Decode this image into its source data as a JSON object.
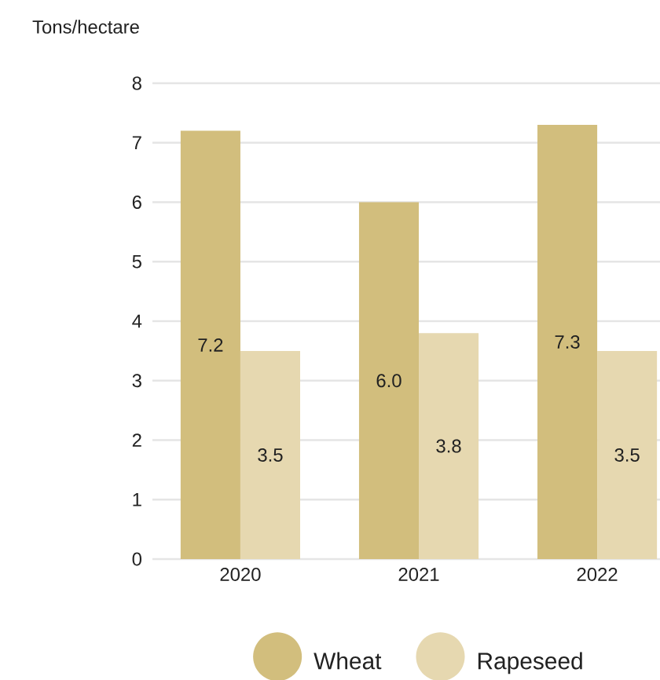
{
  "chart_data": {
    "type": "bar",
    "ylabel": "Tons/hectare",
    "categories": [
      "2020",
      "2021",
      "2022"
    ],
    "series": [
      {
        "name": "Wheat",
        "color": "#d2be7d",
        "values": [
          7.2,
          6.0,
          7.3
        ],
        "value_labels": [
          "7.2",
          "6.0",
          "7.3"
        ]
      },
      {
        "name": "Rapeseed",
        "color": "#e6d8b0",
        "values": [
          3.5,
          3.8,
          3.5
        ],
        "value_labels": [
          "3.5",
          "3.8",
          "3.5"
        ]
      }
    ],
    "ylim": [
      0,
      8
    ],
    "yticks": [
      0,
      1,
      2,
      3,
      4,
      5,
      6,
      7,
      8
    ],
    "grid": "y",
    "legend": "bottom"
  }
}
